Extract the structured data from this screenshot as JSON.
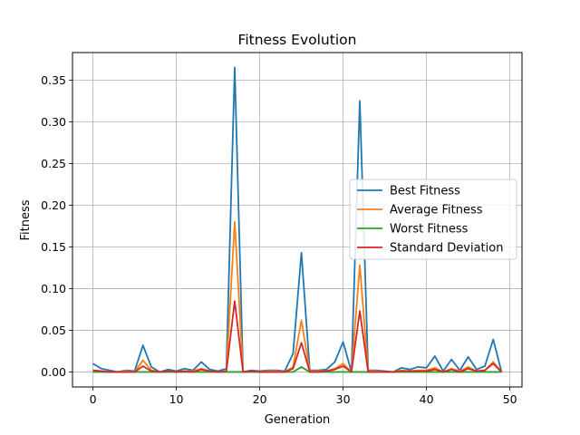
{
  "chart_data": {
    "type": "line",
    "title": "Fitness Evolution",
    "xlabel": "Generation",
    "ylabel": "Fitness",
    "xlim": [
      -2.45,
      51.45
    ],
    "ylim": [
      -0.018,
      0.383
    ],
    "xticks": [
      0,
      10,
      20,
      30,
      40,
      50
    ],
    "yticks": [
      0.0,
      0.05,
      0.1,
      0.15,
      0.2,
      0.25,
      0.3,
      0.35
    ],
    "xtick_labels": [
      "0",
      "10",
      "20",
      "30",
      "40",
      "50"
    ],
    "ytick_labels": [
      "0.00",
      "0.05",
      "0.10",
      "0.15",
      "0.20",
      "0.25",
      "0.30",
      "0.35"
    ],
    "grid": true,
    "legend_position": "center-right",
    "x": [
      0,
      1,
      2,
      3,
      4,
      5,
      6,
      7,
      8,
      9,
      10,
      11,
      12,
      13,
      14,
      15,
      16,
      17,
      18,
      19,
      20,
      21,
      22,
      23,
      24,
      25,
      26,
      27,
      28,
      29,
      30,
      31,
      32,
      33,
      34,
      35,
      36,
      37,
      38,
      39,
      40,
      41,
      42,
      43,
      44,
      45,
      46,
      47,
      48,
      49
    ],
    "series": [
      {
        "name": "Best Fitness",
        "color": "#1f77b4",
        "values": [
          0.01,
          0.004,
          0.002,
          0.0,
          0.002,
          0.001,
          0.032,
          0.006,
          0.0,
          0.003,
          0.001,
          0.004,
          0.002,
          0.012,
          0.003,
          0.001,
          0.004,
          0.365,
          0.0,
          0.002,
          0.001,
          0.002,
          0.002,
          0.001,
          0.022,
          0.143,
          0.002,
          0.002,
          0.003,
          0.012,
          0.036,
          0.0,
          0.325,
          0.002,
          0.002,
          0.001,
          0.0,
          0.005,
          0.003,
          0.006,
          0.005,
          0.019,
          0.001,
          0.015,
          0.002,
          0.018,
          0.003,
          0.007,
          0.039,
          0.0
        ]
      },
      {
        "name": "Average Fitness",
        "color": "#ff7f0e",
        "values": [
          0.002,
          0.001,
          0.0,
          0.0,
          0.001,
          0.0,
          0.014,
          0.002,
          0.0,
          0.001,
          0.0,
          0.001,
          0.001,
          0.004,
          0.001,
          0.0,
          0.001,
          0.18,
          0.0,
          0.001,
          0.0,
          0.001,
          0.001,
          0.0,
          0.006,
          0.062,
          0.001,
          0.001,
          0.001,
          0.004,
          0.01,
          0.0,
          0.128,
          0.001,
          0.001,
          0.0,
          0.0,
          0.002,
          0.001,
          0.002,
          0.002,
          0.005,
          0.0,
          0.004,
          0.001,
          0.006,
          0.001,
          0.002,
          0.012,
          0.0
        ]
      },
      {
        "name": "Worst Fitness",
        "color": "#2ca02c",
        "values": [
          0.0,
          0.0,
          0.0,
          0.0,
          0.0,
          0.0,
          0.0,
          0.0,
          0.0,
          0.0,
          0.0,
          0.0,
          0.0,
          0.0,
          0.0,
          0.0,
          0.0,
          0.0,
          0.0,
          0.0,
          0.0,
          0.0,
          0.0,
          0.0,
          0.0,
          0.006,
          0.0,
          0.0,
          0.0,
          0.0,
          0.0,
          0.0,
          0.0,
          0.0,
          0.0,
          0.0,
          0.0,
          0.0,
          0.0,
          0.0,
          0.0,
          0.0,
          0.0,
          0.0,
          0.0,
          0.0,
          0.0,
          0.0,
          0.0,
          0.0
        ]
      },
      {
        "name": "Standard Deviation",
        "color": "#d62728",
        "values": [
          0.002,
          0.001,
          0.0,
          0.0,
          0.0,
          0.0,
          0.007,
          0.001,
          0.0,
          0.001,
          0.0,
          0.001,
          0.0,
          0.003,
          0.001,
          0.0,
          0.001,
          0.085,
          0.0,
          0.001,
          0.0,
          0.0,
          0.0,
          0.0,
          0.004,
          0.035,
          0.0,
          0.0,
          0.001,
          0.003,
          0.007,
          0.0,
          0.073,
          0.0,
          0.0,
          0.0,
          0.0,
          0.001,
          0.001,
          0.001,
          0.001,
          0.003,
          0.0,
          0.003,
          0.0,
          0.004,
          0.001,
          0.002,
          0.01,
          0.0
        ]
      }
    ]
  }
}
